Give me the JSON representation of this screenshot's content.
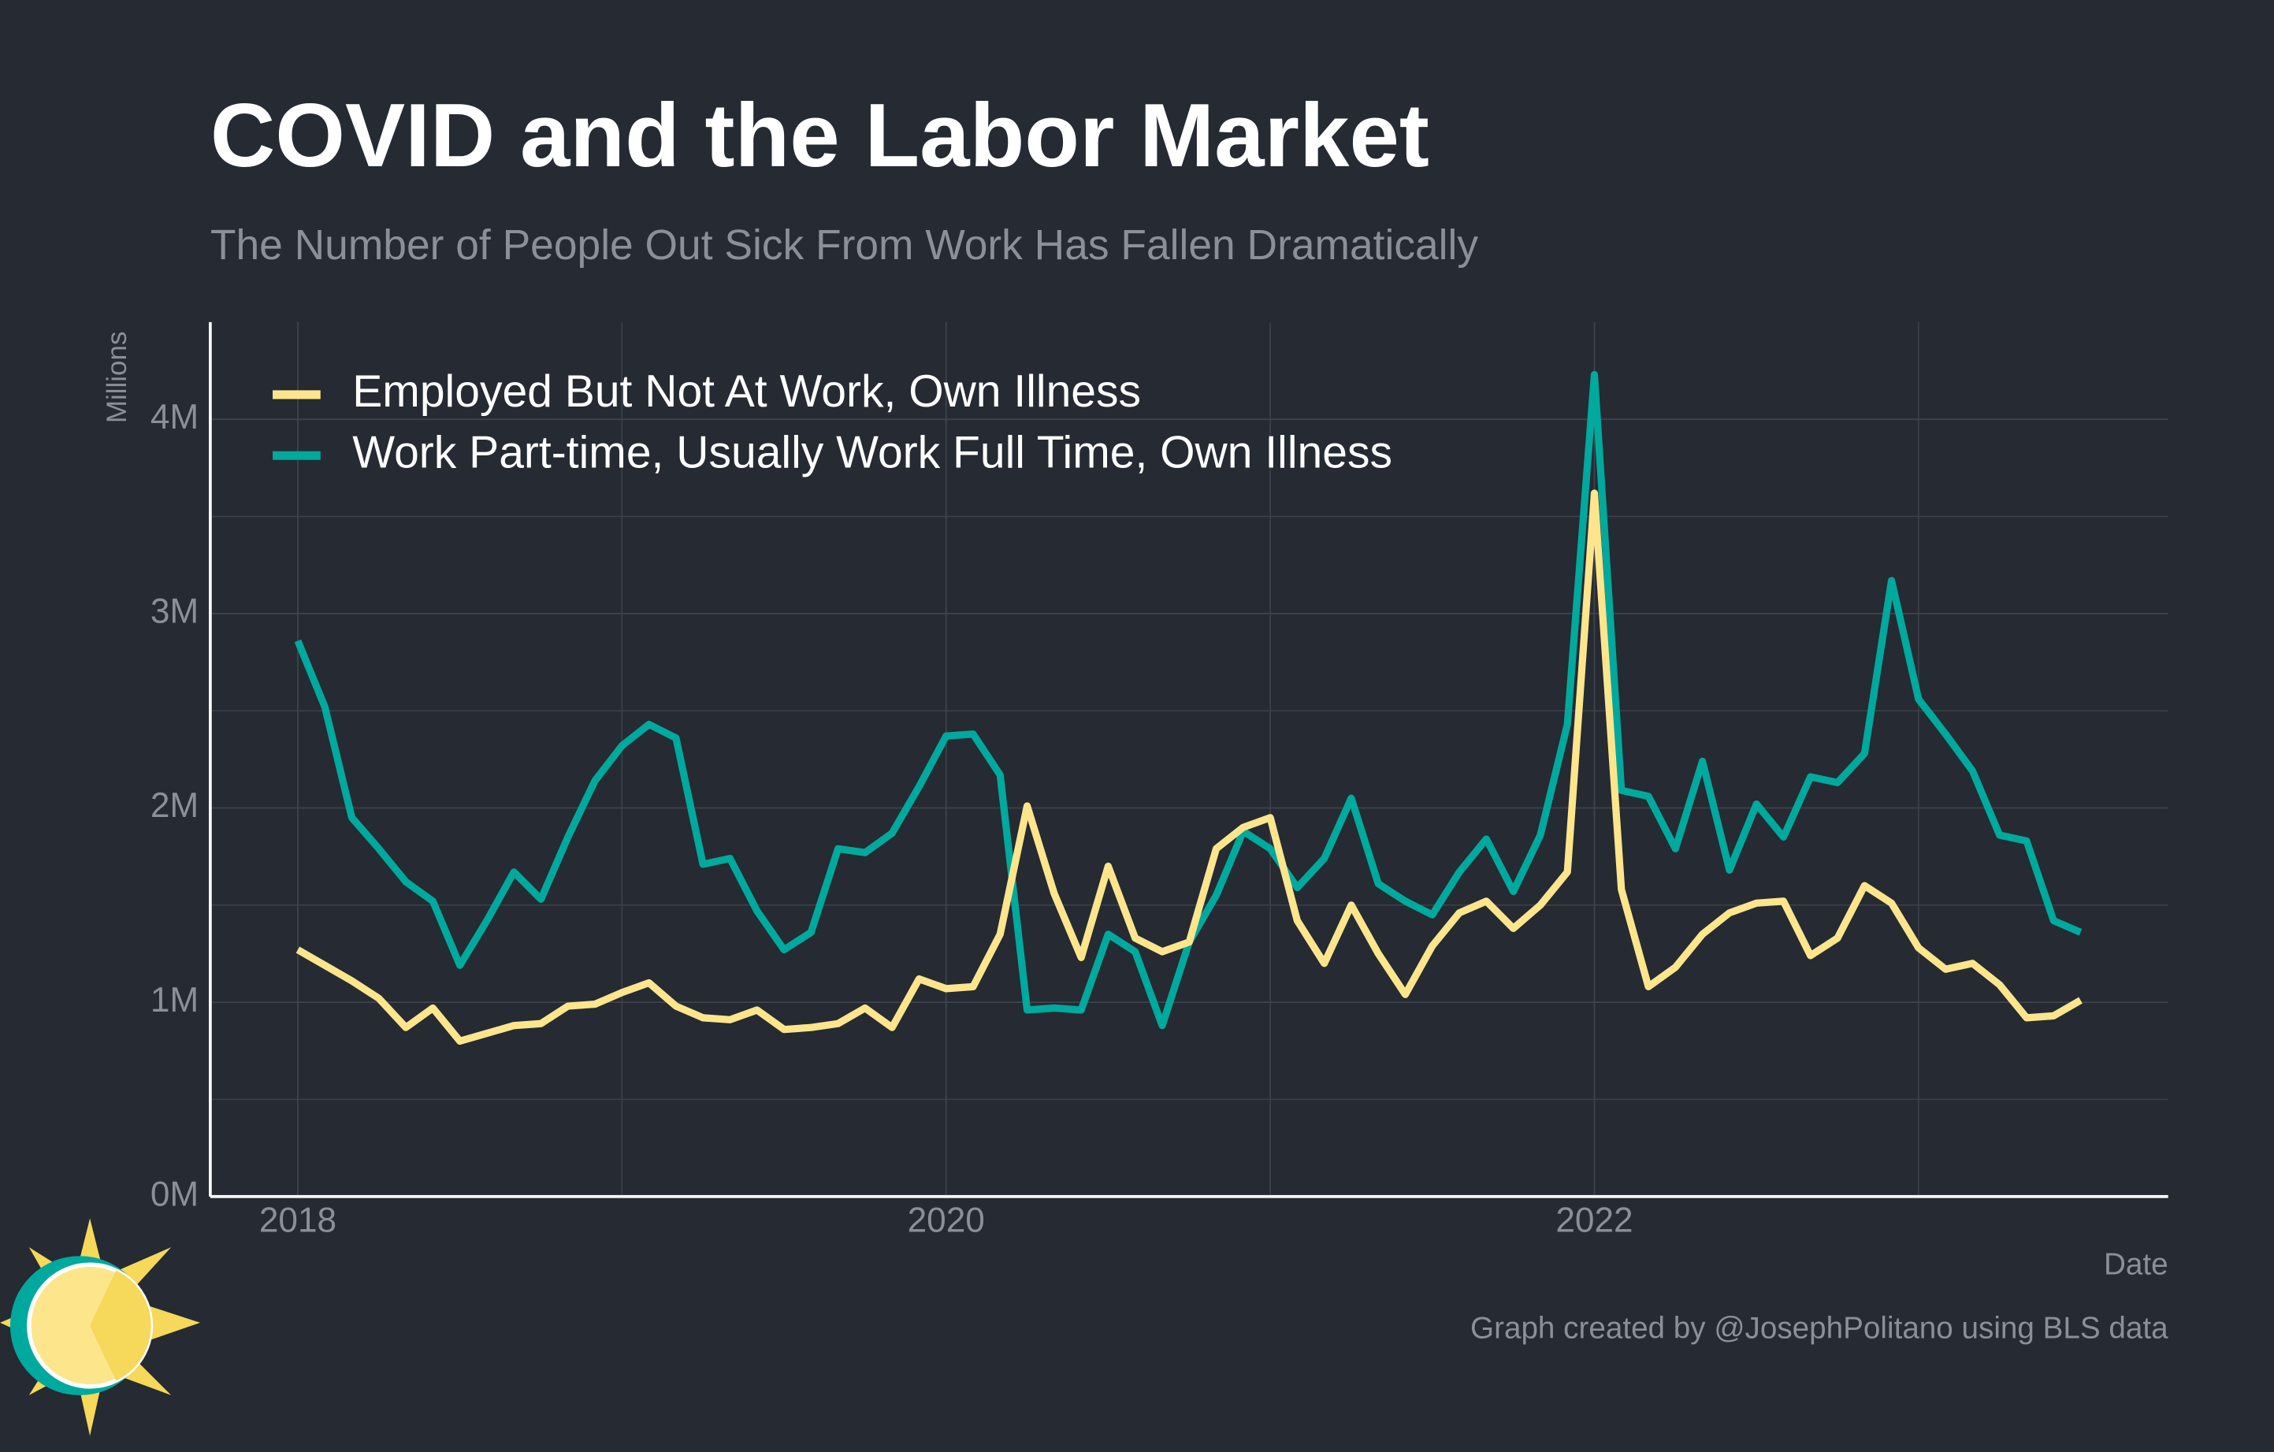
{
  "chart_data": {
    "type": "line",
    "title": "COVID and the Labor Market",
    "subtitle": "The Number of People Out Sick From Work Has Fallen Dramatically",
    "ylabel": "Millions",
    "xlabel": "Date",
    "caption": "Graph created by @JosephPolitano using BLS data",
    "legend": "top-left",
    "grid": true,
    "x": [
      "2018-01",
      "2018-02",
      "2018-03",
      "2018-04",
      "2018-05",
      "2018-06",
      "2018-07",
      "2018-08",
      "2018-09",
      "2018-10",
      "2018-11",
      "2018-12",
      "2019-01",
      "2019-02",
      "2019-03",
      "2019-04",
      "2019-05",
      "2019-06",
      "2019-07",
      "2019-08",
      "2019-09",
      "2019-10",
      "2019-11",
      "2019-12",
      "2020-01",
      "2020-02",
      "2020-03",
      "2020-04",
      "2020-05",
      "2020-06",
      "2020-07",
      "2020-08",
      "2020-09",
      "2020-10",
      "2020-11",
      "2020-12",
      "2021-01",
      "2021-02",
      "2021-03",
      "2021-04",
      "2021-05",
      "2021-06",
      "2021-07",
      "2021-08",
      "2021-09",
      "2021-10",
      "2021-11",
      "2021-12",
      "2022-01",
      "2022-02",
      "2022-03",
      "2022-04",
      "2022-05",
      "2022-06",
      "2022-07",
      "2022-08",
      "2022-09",
      "2022-10",
      "2022-11",
      "2022-12",
      "2023-01",
      "2023-02",
      "2023-03",
      "2023-04",
      "2023-05",
      "2023-06",
      "2023-07"
    ],
    "series": [
      {
        "name": "Employed But Not At Work, Own Illness",
        "color": "#fde58c",
        "values": [
          1.27,
          1.19,
          1.11,
          1.02,
          0.87,
          0.97,
          0.8,
          0.84,
          0.88,
          0.89,
          0.98,
          0.99,
          1.05,
          1.1,
          0.98,
          0.92,
          0.91,
          0.96,
          0.86,
          0.87,
          0.89,
          0.97,
          0.87,
          1.12,
          1.07,
          1.08,
          1.35,
          2.01,
          1.56,
          1.23,
          1.7,
          1.33,
          1.26,
          1.31,
          1.79,
          1.9,
          1.95,
          1.42,
          1.2,
          1.5,
          1.25,
          1.04,
          1.29,
          1.46,
          1.52,
          1.38,
          1.5,
          1.67,
          3.62,
          1.58,
          1.08,
          1.18,
          1.35,
          1.46,
          1.51,
          1.52,
          1.24,
          1.33,
          1.6,
          1.51,
          1.28,
          1.17,
          1.2,
          1.09,
          0.92,
          0.93,
          1.01
        ]
      },
      {
        "name": "Work Part-time, Usually Work Full Time, Own Illness",
        "color": "#00a99d",
        "values": [
          2.86,
          2.52,
          1.95,
          1.79,
          1.62,
          1.52,
          1.19,
          1.42,
          1.67,
          1.53,
          1.85,
          2.14,
          2.32,
          2.43,
          2.36,
          1.71,
          1.74,
          1.47,
          1.27,
          1.36,
          1.79,
          1.77,
          1.87,
          2.11,
          2.37,
          2.38,
          2.17,
          0.96,
          0.97,
          0.96,
          1.35,
          1.26,
          0.88,
          1.31,
          1.55,
          1.88,
          1.79,
          1.59,
          1.74,
          2.05,
          1.61,
          1.52,
          1.45,
          1.67,
          1.84,
          1.57,
          1.86,
          2.43,
          4.23,
          2.09,
          2.06,
          1.79,
          2.24,
          1.68,
          2.02,
          1.85,
          2.16,
          2.13,
          2.28,
          3.17,
          2.56,
          2.38,
          2.19,
          1.86,
          1.83,
          1.42,
          1.36
        ]
      }
    ],
    "xlim": [
      2017.73,
      2023.77
    ],
    "xticks": [
      2018,
      2020,
      2022
    ],
    "ylim": [
      0,
      4.5
    ],
    "yticks": [
      {
        "value": 0,
        "label": "0M"
      },
      {
        "value": 1,
        "label": "1M"
      },
      {
        "value": 2,
        "label": "2M"
      },
      {
        "value": 3,
        "label": "3M"
      },
      {
        "value": 4,
        "label": "4M"
      }
    ]
  }
}
